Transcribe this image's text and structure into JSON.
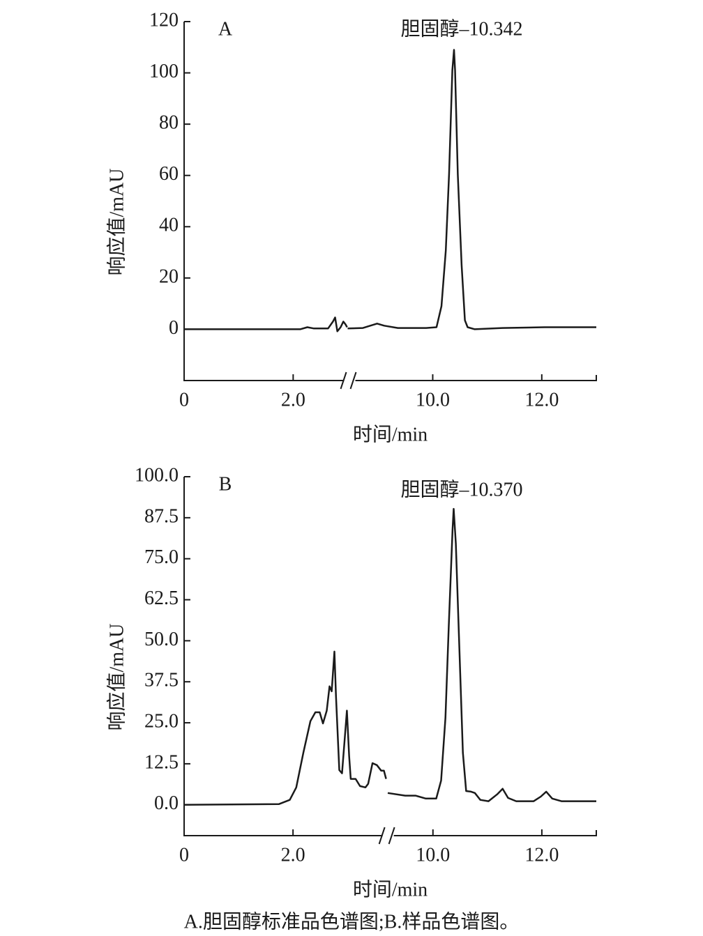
{
  "chart_data": [
    {
      "type": "line",
      "label": "A",
      "annotation": "胆固醇–10.342",
      "ylabel": "响应值/mAU",
      "xlabel": "时间/min",
      "xlim": [
        0,
        13
      ],
      "xbreak": [
        3.0,
        8.44
      ],
      "xticks": [
        0,
        {
          "value": 2,
          "label": "2.0"
        },
        {
          "value": 10,
          "label": "10.0"
        },
        {
          "value": 12,
          "label": "12.0"
        }
      ],
      "ylim": [
        -20,
        120
      ],
      "yticks": [
        0,
        20,
        40,
        60,
        80,
        100,
        120
      ],
      "color": "#1a1a1a",
      "x": [
        0,
        2.13,
        2.26,
        2.38,
        2.64,
        2.73,
        2.77,
        2.81,
        2.87,
        2.92,
        2.96,
        2.99,
        null,
        8.44,
        8.72,
        8.98,
        9.11,
        9.36,
        9.88,
        10.07,
        10.16,
        10.24,
        10.3,
        10.36,
        10.39,
        10.41,
        10.46,
        10.53,
        10.59,
        10.64,
        10.77,
        11.28,
        12.05,
        13.0
      ],
      "values": [
        0,
        0,
        0.8,
        0.3,
        0.3,
        3,
        4.6,
        -0.8,
        0.8,
        3,
        1.9,
        0.8,
        null,
        0.3,
        0.5,
        2.2,
        1.4,
        0.5,
        0.5,
        0.8,
        9,
        30.7,
        60.5,
        101,
        109,
        101,
        60.5,
        25,
        3.5,
        0.8,
        0,
        0.5,
        0.8,
        0.8
      ]
    },
    {
      "type": "line",
      "label": "B",
      "annotation": "胆固醇–10.370",
      "ylabel": "响应值/mAU",
      "xlabel": "时间/min",
      "xlim": [
        0,
        13
      ],
      "xbreak": [
        3.71,
        9.14
      ],
      "xticks": [
        0,
        {
          "value": 2,
          "label": "2.0"
        },
        {
          "value": 10,
          "label": "10.0"
        },
        {
          "value": 12,
          "label": "12.0"
        }
      ],
      "ylim": [
        -9.4,
        100
      ],
      "yticks": [
        {
          "value": 0,
          "label": "0.0"
        },
        12.5,
        {
          "value": 25,
          "label": "25.0"
        },
        37.5,
        {
          "value": 50,
          "label": "50.0"
        },
        62.5,
        {
          "value": 75,
          "label": "75.0"
        },
        87.5,
        {
          "value": 100,
          "label": "100.0"
        }
      ],
      "color": "#1a1a1a",
      "x": [
        0,
        1.74,
        1.94,
        2.06,
        2.19,
        2.32,
        2.41,
        2.49,
        2.55,
        2.62,
        2.67,
        2.71,
        2.76,
        2.79,
        2.85,
        2.9,
        2.95,
        2.99,
        3.03,
        3.06,
        3.15,
        3.23,
        3.33,
        3.38,
        3.46,
        3.54,
        3.62,
        3.67,
        3.71,
        null,
        9.17,
        9.49,
        9.68,
        9.87,
        10.06,
        10.15,
        10.23,
        10.29,
        10.36,
        10.38,
        10.42,
        10.49,
        10.55,
        10.61,
        10.7,
        10.77,
        10.87,
        11.02,
        11.18,
        11.28,
        11.38,
        11.53,
        11.85,
        11.98,
        12.08,
        12.19,
        12.36,
        13.0
      ],
      "values": [
        0,
        0.2,
        1.5,
        5.3,
        15.9,
        25.5,
        28.2,
        28.2,
        24.8,
        28.7,
        36.1,
        34.6,
        46.7,
        32.9,
        10.6,
        9.6,
        20.2,
        28.7,
        14.9,
        7.9,
        7.9,
        5.7,
        5.3,
        6.4,
        12.7,
        12.1,
        10.4,
        10.4,
        7.9,
        null,
        3.6,
        2.8,
        2.8,
        1.9,
        1.9,
        7.4,
        26.5,
        54.1,
        83.9,
        90.2,
        79.6,
        45.6,
        15.9,
        4.2,
        4.0,
        3.6,
        1.5,
        1.1,
        3.2,
        4.9,
        2.1,
        1.1,
        1.1,
        2.5,
        4.0,
        1.9,
        1.1,
        1.1
      ]
    }
  ],
  "caption": "A.胆固醇标准品色谱图;B.样品色谱图。"
}
